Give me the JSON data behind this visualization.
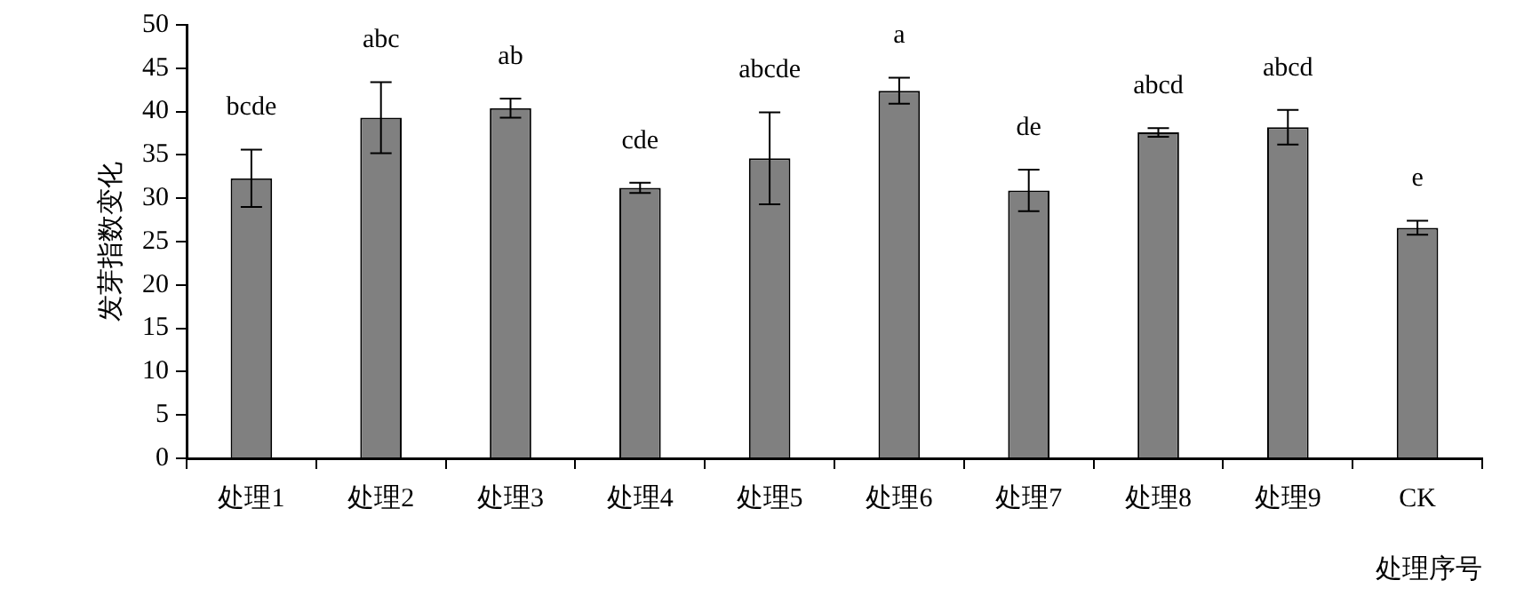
{
  "chart_data": {
    "type": "bar",
    "xlabel": "处理序号",
    "ylabel": "发芽指数变化",
    "categories": [
      "处理1",
      "处理2",
      "处理3",
      "处理4",
      "处理5",
      "处理6",
      "处理7",
      "处理8",
      "处理9",
      "CK"
    ],
    "values": [
      32.3,
      39.3,
      40.4,
      31.2,
      34.6,
      42.4,
      30.9,
      37.6,
      38.2,
      26.6
    ],
    "errors": [
      3.3,
      4.1,
      1.1,
      0.6,
      5.3,
      1.5,
      2.4,
      0.5,
      2.0,
      0.8
    ],
    "color": "#808080",
    "ylim": [
      0,
      50
    ],
    "yticks": [
      0,
      5,
      10,
      15,
      20,
      25,
      30,
      35,
      40,
      45,
      50
    ],
    "grid": false,
    "legend": false,
    "annotations": [
      {
        "text": "bcde",
        "x": "处理1",
        "y": 35.6
      },
      {
        "text": "abc",
        "x": "处理2",
        "y": 43.4
      },
      {
        "text": "ab",
        "x": "处理3",
        "y": 41.5
      },
      {
        "text": "cde",
        "x": "处理4",
        "y": 31.8
      },
      {
        "text": "abcde",
        "x": "处理5",
        "y": 39.9
      },
      {
        "text": "a",
        "x": "处理6",
        "y": 43.9
      },
      {
        "text": "de",
        "x": "处理7",
        "y": 33.3
      },
      {
        "text": "abcd",
        "x": "处理8",
        "y": 38.1
      },
      {
        "text": "abcd",
        "x": "处理9",
        "y": 40.2
      },
      {
        "text": "e",
        "x": "CK",
        "y": 27.4
      }
    ]
  }
}
